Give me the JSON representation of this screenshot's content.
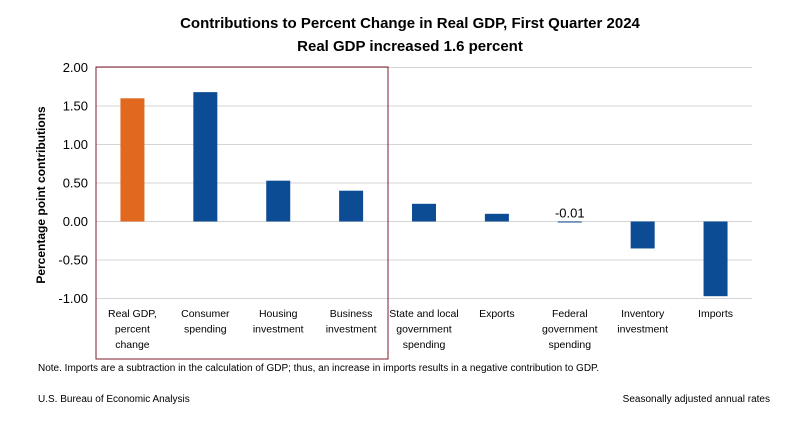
{
  "chart_data": {
    "type": "bar",
    "title": "Contributions to Percent Change in Real GDP, First Quarter 2024",
    "subtitle": "Real GDP increased 1.6 percent",
    "xlabel": "",
    "ylabel": "Percentage point contributions",
    "ylim": [
      -1.0,
      2.0
    ],
    "yticks": [
      "2.00",
      "1.50",
      "1.00",
      "0.50",
      "0.00",
      "-0.50",
      "-1.00"
    ],
    "ytick_values": [
      2.0,
      1.5,
      1.0,
      0.5,
      0.0,
      -0.5,
      -1.0
    ],
    "grid": true,
    "categories": [
      [
        "Real GDP,",
        "percent",
        "change"
      ],
      [
        "Consumer",
        "spending"
      ],
      [
        "Housing",
        "investment"
      ],
      [
        "Business",
        "investment"
      ],
      [
        "State and local",
        "government",
        "spending"
      ],
      [
        "Exports"
      ],
      [
        "Federal",
        "government",
        "spending"
      ],
      [
        "Inventory",
        "investment"
      ],
      [
        "Imports"
      ]
    ],
    "values": [
      1.6,
      1.68,
      0.53,
      0.4,
      0.23,
      0.1,
      -0.01,
      -0.35,
      -0.97
    ],
    "data_labels": [
      "",
      "",
      "",
      "",
      "",
      "",
      "-0.01",
      "",
      ""
    ],
    "colors": [
      "#e0691f",
      "#0b4c94",
      "#0b4c94",
      "#0b4c94",
      "#0b4c94",
      "#0b4c94",
      "#0b4c94",
      "#0b4c94",
      "#0b4c94"
    ],
    "highlight_box_color": "#7b1c2c"
  },
  "footer": {
    "note": "Note. Imports are a subtraction in the calculation of GDP; thus, an increase in imports results in a negative contribution to GDP.",
    "source": "U.S. Bureau of Economic Analysis",
    "rates": "Seasonally adjusted annual rates"
  }
}
